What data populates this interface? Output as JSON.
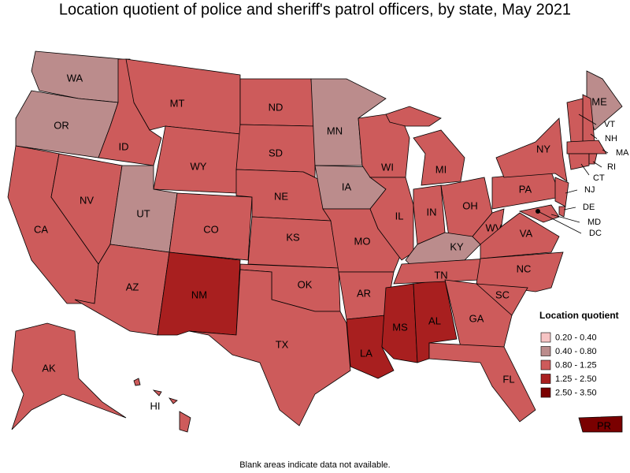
{
  "title": "Location quotient of police and sheriff's patrol officers, by state, May 2021",
  "legend": {
    "title": "Location quotient",
    "items": [
      {
        "label": "0.20 - 0.40",
        "color": "#f6c4c4"
      },
      {
        "label": "0.40 - 0.80",
        "color": "#bb8c8c"
      },
      {
        "label": "0.80 - 1.25",
        "color": "#cd5b5b"
      },
      {
        "label": "1.25 - 2.50",
        "color": "#a81f1f"
      },
      {
        "label": "2.50 - 3.50",
        "color": "#7a0000"
      }
    ]
  },
  "states": [
    {
      "abbr": "WA",
      "color": "#bb8c8c"
    },
    {
      "abbr": "OR",
      "color": "#bb8c8c"
    },
    {
      "abbr": "CA",
      "color": "#cd5b5b"
    },
    {
      "abbr": "NV",
      "color": "#cd5b5b"
    },
    {
      "abbr": "ID",
      "color": "#cd5b5b"
    },
    {
      "abbr": "MT",
      "color": "#cd5b5b"
    },
    {
      "abbr": "WY",
      "color": "#cd5b5b"
    },
    {
      "abbr": "UT",
      "color": "#bb8c8c"
    },
    {
      "abbr": "CO",
      "color": "#cd5b5b"
    },
    {
      "abbr": "AZ",
      "color": "#cd5b5b"
    },
    {
      "abbr": "NM",
      "color": "#a81f1f"
    },
    {
      "abbr": "ND",
      "color": "#cd5b5b"
    },
    {
      "abbr": "SD",
      "color": "#cd5b5b"
    },
    {
      "abbr": "NE",
      "color": "#cd5b5b"
    },
    {
      "abbr": "KS",
      "color": "#cd5b5b"
    },
    {
      "abbr": "OK",
      "color": "#cd5b5b"
    },
    {
      "abbr": "TX",
      "color": "#cd5b5b"
    },
    {
      "abbr": "MN",
      "color": "#bb8c8c"
    },
    {
      "abbr": "IA",
      "color": "#bb8c8c"
    },
    {
      "abbr": "MO",
      "color": "#cd5b5b"
    },
    {
      "abbr": "AR",
      "color": "#cd5b5b"
    },
    {
      "abbr": "LA",
      "color": "#a81f1f"
    },
    {
      "abbr": "MS",
      "color": "#a81f1f"
    },
    {
      "abbr": "AL",
      "color": "#a81f1f"
    },
    {
      "abbr": "WI",
      "color": "#cd5b5b"
    },
    {
      "abbr": "IL",
      "color": "#cd5b5b"
    },
    {
      "abbr": "MI",
      "color": "#cd5b5b"
    },
    {
      "abbr": "IN",
      "color": "#cd5b5b"
    },
    {
      "abbr": "OH",
      "color": "#cd5b5b"
    },
    {
      "abbr": "KY",
      "color": "#bb8c8c"
    },
    {
      "abbr": "TN",
      "color": "#cd5b5b"
    },
    {
      "abbr": "WV",
      "color": "#cd5b5b"
    },
    {
      "abbr": "VA",
      "color": "#cd5b5b"
    },
    {
      "abbr": "NC",
      "color": "#cd5b5b"
    },
    {
      "abbr": "SC",
      "color": "#cd5b5b"
    },
    {
      "abbr": "GA",
      "color": "#cd5b5b"
    },
    {
      "abbr": "FL",
      "color": "#cd5b5b"
    },
    {
      "abbr": "PA",
      "color": "#cd5b5b"
    },
    {
      "abbr": "NY",
      "color": "#cd5b5b"
    },
    {
      "abbr": "NJ",
      "color": "#cd5b5b"
    },
    {
      "abbr": "DE",
      "color": "#cd5b5b"
    },
    {
      "abbr": "MD",
      "color": "#cd5b5b"
    },
    {
      "abbr": "DC",
      "color": "#cd5b5b"
    },
    {
      "abbr": "ME",
      "color": "#bb8c8c"
    },
    {
      "abbr": "NH",
      "color": "#cd5b5b"
    },
    {
      "abbr": "VT",
      "color": "#cd5b5b"
    },
    {
      "abbr": "MA",
      "color": "#cd5b5b"
    },
    {
      "abbr": "CT",
      "color": "#cd5b5b"
    },
    {
      "abbr": "RI",
      "color": "#cd5b5b"
    },
    {
      "abbr": "AK",
      "color": "#cd5b5b"
    },
    {
      "abbr": "HI",
      "color": "#cd5b5b"
    },
    {
      "abbr": "PR",
      "color": "#7a0000"
    }
  ],
  "footnote": "Blank areas indicate data not available."
}
